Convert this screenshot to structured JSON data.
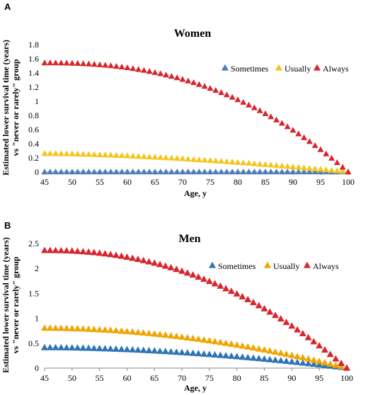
{
  "chart_data": [
    {
      "panel": "A",
      "type": "scatter",
      "title": "Women",
      "xlabel": "Age, y",
      "ylabel": "Estimated lower survival time (years) vs \"never or rarely\" group",
      "ylabel_lines": [
        "Estimated lower survival time (years)",
        "vs \"never or rarely\" group"
      ],
      "xlim": [
        45,
        100
      ],
      "ylim": [
        0,
        1.8
      ],
      "xticks": [
        45,
        50,
        55,
        60,
        65,
        70,
        75,
        80,
        85,
        90,
        95,
        100
      ],
      "yticks": [
        0,
        0.2,
        0.4,
        0.6,
        0.8,
        1,
        1.2,
        1.4,
        1.6,
        1.8
      ],
      "ytick_labels": [
        "0",
        "0.2",
        "0.4",
        "0.6",
        "0.8",
        "1",
        "1.2",
        "1.4",
        "1.6",
        "1.8"
      ],
      "legend_position": "top-right",
      "series": [
        {
          "name": "Sometimes",
          "color": "#4a7ebb",
          "start": 45,
          "end": 100,
          "y0": 0.0,
          "exponent": 2.2
        },
        {
          "name": "Usually",
          "color": "#f5c518",
          "start": 45,
          "end": 100,
          "y0": 0.26,
          "exponent": 1.6
        },
        {
          "name": "Always",
          "color": "#d7262d",
          "start": 45,
          "end": 100,
          "y0": 1.54,
          "exponent": 2.4
        }
      ]
    },
    {
      "panel": "B",
      "type": "scatter",
      "title": "Men",
      "xlabel": "Age, y",
      "ylabel": "Estimated lower survival time (years) vs \"never or rarely\" group",
      "ylabel_lines": [
        "Estimated lower survival time (years)",
        "vs \"never or rarely\" group"
      ],
      "xlim": [
        45,
        100
      ],
      "ylim": [
        0,
        2.5
      ],
      "xticks": [
        45,
        50,
        55,
        60,
        65,
        70,
        75,
        80,
        85,
        90,
        95,
        100
      ],
      "yticks": [
        0,
        0.5,
        1,
        1.5,
        2,
        2.5
      ],
      "ytick_labels": [
        "0",
        "0.5",
        "1",
        "1.5",
        "2",
        "2.5"
      ],
      "legend_position": "top-right",
      "series": [
        {
          "name": "Sometimes",
          "color": "#2e75b6",
          "start": 45,
          "end": 100,
          "y0": 0.41,
          "exponent": 1.8
        },
        {
          "name": "Usually",
          "color": "#f0a500",
          "start": 45,
          "end": 100,
          "y0": 0.8,
          "exponent": 1.9
        },
        {
          "name": "Always",
          "color": "#d7262d",
          "start": 45,
          "end": 100,
          "y0": 2.36,
          "exponent": 2.2
        }
      ]
    }
  ]
}
